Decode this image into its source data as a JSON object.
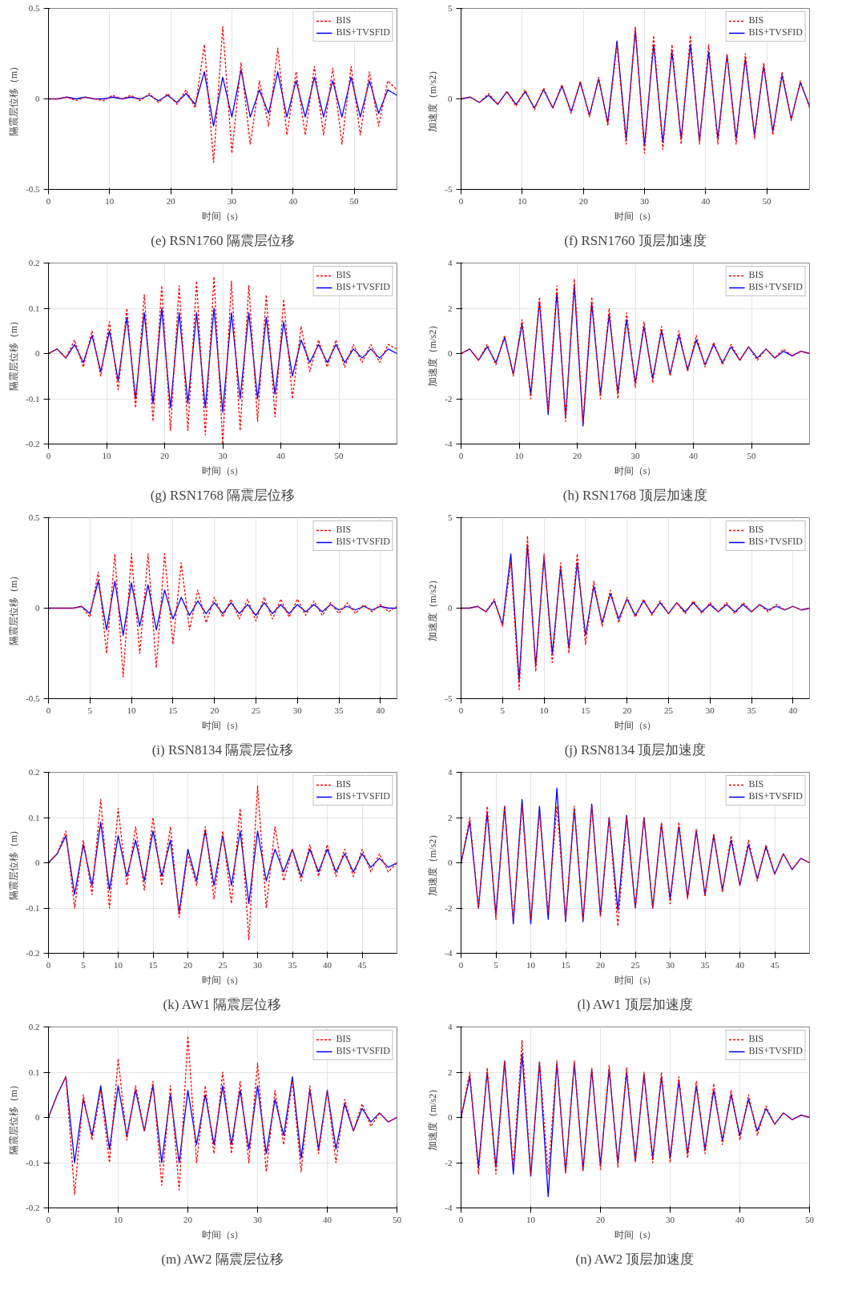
{
  "chart_data": [
    {
      "type": "line",
      "title": "(e) RSN1760 隔震层位移",
      "xlabel": "时间（s）",
      "ylabel": "隔震层位移（m）",
      "xlim": [
        0,
        57
      ],
      "xticks": [
        0,
        10,
        20,
        30,
        40,
        50
      ],
      "ylim": [
        -0.5,
        0.5
      ],
      "yticks": [
        -0.5,
        0,
        0.5
      ],
      "grid": true,
      "legend": "top right",
      "x": [
        0,
        1.5,
        3,
        4.5,
        6,
        7.5,
        9,
        10.5,
        12,
        13.5,
        15,
        16.5,
        18,
        19.5,
        21,
        22.5,
        24,
        25.5,
        27,
        28.5,
        30,
        31.5,
        33,
        34.5,
        36,
        37.5,
        39,
        40.5,
        42,
        43.5,
        45,
        46.5,
        48,
        49.5,
        51,
        52.5,
        54,
        55.5,
        57
      ],
      "series": [
        {
          "name": "BIS",
          "color": "#ff0000",
          "line_style": "dashed",
          "values": [
            0,
            0,
            0.01,
            -0.01,
            0.01,
            0,
            -0.01,
            0.02,
            0,
            0.02,
            -0.01,
            0.03,
            -0.02,
            0.03,
            -0.03,
            0.05,
            -0.05,
            0.3,
            -0.35,
            0.4,
            -0.3,
            0.2,
            -0.25,
            0.1,
            -0.15,
            0.28,
            -0.2,
            0.15,
            -0.2,
            0.18,
            -0.2,
            0.17,
            -0.25,
            0.18,
            -0.2,
            0.15,
            -0.15,
            0.1,
            0.05
          ]
        },
        {
          "name": "BIS+TVSFID",
          "color": "#0000ff",
          "line_style": "solid",
          "values": [
            0,
            0,
            0.01,
            0,
            0.01,
            0,
            0,
            0.01,
            0,
            0.01,
            0,
            0.02,
            -0.01,
            0.02,
            -0.02,
            0.03,
            -0.03,
            0.15,
            -0.15,
            0.12,
            -0.1,
            0.16,
            -0.1,
            0.05,
            -0.08,
            0.15,
            -0.1,
            0.1,
            -0.1,
            0.12,
            -0.1,
            0.1,
            -0.1,
            0.12,
            -0.1,
            0.1,
            -0.08,
            0.05,
            0.02
          ]
        }
      ]
    },
    {
      "type": "line",
      "title": "(f) RSN1760 顶层加速度",
      "xlabel": "时间（s）",
      "ylabel": "加速度（m/s2）",
      "xlim": [
        0,
        57
      ],
      "xticks": [
        0,
        10,
        20,
        30,
        40,
        50
      ],
      "ylim": [
        -5,
        5
      ],
      "yticks": [
        -5,
        0,
        5
      ],
      "grid": true,
      "legend": "top right",
      "x": [
        0,
        1.5,
        3,
        4.5,
        6,
        7.5,
        9,
        10.5,
        12,
        13.5,
        15,
        16.5,
        18,
        19.5,
        21,
        22.5,
        24,
        25.5,
        27,
        28.5,
        30,
        31.5,
        33,
        34.5,
        36,
        37.5,
        39,
        40.5,
        42,
        43.5,
        45,
        46.5,
        48,
        49.5,
        51,
        52.5,
        54,
        55.5,
        57
      ],
      "series": [
        {
          "name": "BIS",
          "color": "#ff0000",
          "line_style": "dashed",
          "values": [
            0,
            0.1,
            -0.2,
            0.3,
            -0.3,
            0.4,
            -0.4,
            0.5,
            -0.6,
            0.6,
            -0.5,
            0.8,
            -0.8,
            1,
            -1,
            1.2,
            -1.5,
            3,
            -2.5,
            4,
            -3,
            3.5,
            -2.8,
            3,
            -2.5,
            3.5,
            -2.5,
            3,
            -2.5,
            2.5,
            -2.5,
            2.5,
            -2.2,
            2,
            -2,
            1.5,
            -1.2,
            1,
            -0.5
          ]
        },
        {
          "name": "BIS+TVSFID",
          "color": "#0000ff",
          "line_style": "solid",
          "values": [
            0,
            0.1,
            -0.2,
            0.2,
            -0.3,
            0.4,
            -0.3,
            0.4,
            -0.5,
            0.5,
            -0.5,
            0.7,
            -0.7,
            0.9,
            -0.9,
            1.1,
            -1.3,
            3.2,
            -2.2,
            3.8,
            -2.6,
            3,
            -2.4,
            2.6,
            -2.2,
            3,
            -2.3,
            2.6,
            -2.2,
            2.4,
            -2.2,
            2.2,
            -2,
            1.8,
            -1.8,
            1.3,
            -1.1,
            0.9,
            -0.4
          ]
        }
      ]
    },
    {
      "type": "line",
      "title": "(g) RSN1768 隔震层位移",
      "xlabel": "时间（s）",
      "ylabel": "隔震层位移（m）",
      "xlim": [
        0,
        60
      ],
      "xticks": [
        0,
        10,
        20,
        30,
        40,
        50
      ],
      "ylim": [
        -0.2,
        0.2
      ],
      "yticks": [
        -0.2,
        -0.1,
        0,
        0.1,
        0.2
      ],
      "grid": true,
      "legend": "top right",
      "x": [
        0,
        1.5,
        3,
        4.5,
        6,
        7.5,
        9,
        10.5,
        12,
        13.5,
        15,
        16.5,
        18,
        19.5,
        21,
        22.5,
        24,
        25.5,
        27,
        28.5,
        30,
        31.5,
        33,
        34.5,
        36,
        37.5,
        39,
        40.5,
        42,
        43.5,
        45,
        46.5,
        48,
        49.5,
        51,
        52.5,
        54,
        55.5,
        57,
        58.5,
        60
      ],
      "series": [
        {
          "name": "BIS",
          "color": "#ff0000",
          "line_style": "dashed",
          "values": [
            0,
            0.01,
            -0.01,
            0.03,
            -0.03,
            0.05,
            -0.05,
            0.07,
            -0.08,
            0.1,
            -0.12,
            0.13,
            -0.15,
            0.15,
            -0.17,
            0.15,
            -0.17,
            0.16,
            -0.18,
            0.17,
            -0.2,
            0.16,
            -0.17,
            0.15,
            -0.15,
            0.13,
            -0.14,
            0.12,
            -0.1,
            0.06,
            -0.04,
            0.03,
            -0.03,
            0.03,
            -0.03,
            0.02,
            -0.02,
            0.02,
            -0.02,
            0.02,
            0.01
          ]
        },
        {
          "name": "BIS+TVSFID",
          "color": "#0000ff",
          "line_style": "solid",
          "values": [
            0,
            0.01,
            -0.01,
            0.02,
            -0.02,
            0.04,
            -0.04,
            0.05,
            -0.06,
            0.08,
            -0.1,
            0.09,
            -0.11,
            0.1,
            -0.12,
            0.09,
            -0.11,
            0.09,
            -0.12,
            0.1,
            -0.13,
            0.09,
            -0.1,
            0.09,
            -0.1,
            0.08,
            -0.09,
            0.07,
            -0.05,
            0.03,
            -0.02,
            0.02,
            -0.02,
            0.02,
            -0.02,
            0.01,
            -0.01,
            0.01,
            -0.01,
            0.01,
            0
          ]
        }
      ]
    },
    {
      "type": "line",
      "title": "(h) RSN1768 顶层加速度",
      "xlabel": "时间（s）",
      "ylabel": "加速度（m/s2）",
      "xlim": [
        0,
        60
      ],
      "xticks": [
        0,
        10,
        20,
        30,
        40,
        50
      ],
      "ylim": [
        -4,
        4
      ],
      "yticks": [
        -4,
        -2,
        0,
        2,
        4
      ],
      "grid": true,
      "legend": "top right",
      "x": [
        0,
        1.5,
        3,
        4.5,
        6,
        7.5,
        9,
        10.5,
        12,
        13.5,
        15,
        16.5,
        18,
        19.5,
        21,
        22.5,
        24,
        25.5,
        27,
        28.5,
        30,
        31.5,
        33,
        34.5,
        36,
        37.5,
        39,
        40.5,
        42,
        43.5,
        45,
        46.5,
        48,
        49.5,
        51,
        52.5,
        54,
        55.5,
        57,
        58.5,
        60
      ],
      "series": [
        {
          "name": "BIS",
          "color": "#ff0000",
          "line_style": "dashed",
          "values": [
            0,
            0.2,
            -0.3,
            0.4,
            -0.5,
            0.8,
            -1,
            1.5,
            -2,
            2.5,
            -2.5,
            3,
            -3,
            3.3,
            -3,
            2.5,
            -2,
            2,
            -2,
            1.8,
            -1.5,
            1.4,
            -1.3,
            1.2,
            -1,
            1,
            -0.8,
            0.8,
            -0.6,
            0.5,
            -0.5,
            0.4,
            -0.3,
            0.3,
            -0.3,
            0.2,
            -0.2,
            0.2,
            -0.1,
            0.1,
            0
          ]
        },
        {
          "name": "BIS+TVSFID",
          "color": "#0000ff",
          "line_style": "solid",
          "values": [
            0,
            0.2,
            -0.3,
            0.3,
            -0.4,
            0.7,
            -0.9,
            1.3,
            -1.8,
            2.3,
            -2.7,
            2.7,
            -2.8,
            3,
            -3.2,
            2.2,
            -1.8,
            1.7,
            -1.7,
            1.5,
            -1.3,
            1.2,
            -1.1,
            1,
            -0.9,
            0.8,
            -0.7,
            0.6,
            -0.5,
            0.4,
            -0.4,
            0.3,
            -0.3,
            0.3,
            -0.2,
            0.2,
            -0.2,
            0.1,
            -0.1,
            0.1,
            0
          ]
        }
      ]
    },
    {
      "type": "line",
      "title": "(i) RSN8134 隔震层位移",
      "xlabel": "时间（s）",
      "ylabel": "隔震层位移（m）",
      "xlim": [
        0,
        42
      ],
      "xticks": [
        0,
        5,
        10,
        15,
        20,
        25,
        30,
        35,
        40
      ],
      "ylim": [
        -0.5,
        0.5
      ],
      "yticks": [
        -0.5,
        0,
        0.5
      ],
      "grid": true,
      "legend": "top right",
      "x": [
        0,
        1,
        2,
        3,
        4,
        5,
        6,
        7,
        8,
        9,
        10,
        11,
        12,
        13,
        14,
        15,
        16,
        17,
        18,
        19,
        20,
        21,
        22,
        23,
        24,
        25,
        26,
        27,
        28,
        29,
        30,
        31,
        32,
        33,
        34,
        35,
        36,
        37,
        38,
        39,
        40,
        41,
        42
      ],
      "series": [
        {
          "name": "BIS",
          "color": "#ff0000",
          "line_style": "dashed",
          "values": [
            0,
            0,
            0,
            0,
            0.01,
            -0.05,
            0.2,
            -0.25,
            0.3,
            -0.38,
            0.3,
            -0.25,
            0.3,
            -0.33,
            0.3,
            -0.2,
            0.25,
            -0.12,
            0.1,
            -0.08,
            0.06,
            -0.05,
            0.05,
            -0.06,
            0.05,
            -0.07,
            0.06,
            -0.06,
            0.05,
            -0.05,
            0.05,
            -0.04,
            0.04,
            -0.04,
            0.03,
            -0.03,
            0.03,
            -0.03,
            0.02,
            -0.02,
            0.02,
            -0.02,
            0.01
          ]
        },
        {
          "name": "BIS+TVSFID",
          "color": "#0000ff",
          "line_style": "solid",
          "values": [
            0,
            0,
            0,
            0,
            0.01,
            -0.03,
            0.15,
            -0.12,
            0.15,
            -0.15,
            0.14,
            -0.1,
            0.13,
            -0.12,
            0.1,
            -0.06,
            0.06,
            -0.04,
            0.04,
            -0.03,
            0.03,
            -0.03,
            0.03,
            -0.03,
            0.02,
            -0.04,
            0.03,
            -0.03,
            0.02,
            -0.03,
            0.02,
            -0.02,
            0.02,
            -0.02,
            0.02,
            -0.01,
            0.01,
            -0.01,
            0.01,
            -0.01,
            0.01,
            0,
            0
          ]
        }
      ]
    },
    {
      "type": "line",
      "title": "(j) RSN8134 顶层加速度",
      "xlabel": "时间（s）",
      "ylabel": "加速度（m/s2）",
      "xlim": [
        0,
        42
      ],
      "xticks": [
        0,
        5,
        10,
        15,
        20,
        25,
        30,
        35,
        40
      ],
      "ylim": [
        -5,
        5
      ],
      "yticks": [
        -5,
        0,
        5
      ],
      "grid": true,
      "legend": "top right",
      "x": [
        0,
        1,
        2,
        3,
        4,
        5,
        6,
        7,
        8,
        9,
        10,
        11,
        12,
        13,
        14,
        15,
        16,
        17,
        18,
        19,
        20,
        21,
        22,
        23,
        24,
        25,
        26,
        27,
        28,
        29,
        30,
        31,
        32,
        33,
        34,
        35,
        36,
        37,
        38,
        39,
        40,
        41,
        42
      ],
      "series": [
        {
          "name": "BIS",
          "color": "#ff0000",
          "line_style": "dashed",
          "values": [
            0,
            0,
            0.1,
            -0.2,
            0.5,
            -1,
            2.5,
            -4.5,
            4,
            -3.5,
            3,
            -3,
            2.5,
            -2.5,
            3,
            -2,
            1.5,
            -1,
            1,
            -0.8,
            0.6,
            -0.5,
            0.5,
            -0.4,
            0.4,
            -0.3,
            0.3,
            -0.3,
            0.4,
            -0.3,
            0.3,
            -0.2,
            0.3,
            -0.3,
            0.3,
            -0.2,
            0.2,
            -0.2,
            0.2,
            -0.1,
            0.1,
            -0.1,
            0
          ]
        },
        {
          "name": "BIS+TVSFID",
          "color": "#0000ff",
          "line_style": "solid",
          "values": [
            0,
            0,
            0.1,
            -0.2,
            0.4,
            -0.9,
            3,
            -4,
            3.5,
            -3.2,
            2.8,
            -2.5,
            2.2,
            -2.2,
            2.5,
            -1.5,
            1.2,
            -0.8,
            0.8,
            -0.6,
            0.5,
            -0.4,
            0.4,
            -0.3,
            0.3,
            -0.3,
            0.3,
            -0.2,
            0.3,
            -0.2,
            0.2,
            -0.2,
            0.2,
            -0.2,
            0.2,
            -0.2,
            0.2,
            -0.1,
            0.1,
            -0.1,
            0.1,
            -0.1,
            0
          ]
        }
      ]
    },
    {
      "type": "line",
      "title": "(k) AW1 隔震层位移",
      "xlabel": "时间（s）",
      "ylabel": "隔震层位移（m）",
      "xlim": [
        0,
        50
      ],
      "xticks": [
        0,
        5,
        10,
        15,
        20,
        25,
        30,
        35,
        40,
        45
      ],
      "ylim": [
        -0.2,
        0.2
      ],
      "yticks": [
        -0.2,
        -0.1,
        0,
        0.1,
        0.2
      ],
      "grid": true,
      "legend": "top right",
      "x": [
        0,
        1.25,
        2.5,
        3.75,
        5,
        6.25,
        7.5,
        8.75,
        10,
        11.25,
        12.5,
        13.75,
        15,
        16.25,
        17.5,
        18.75,
        20,
        21.25,
        22.5,
        23.75,
        25,
        26.25,
        27.5,
        28.75,
        30,
        31.25,
        32.5,
        33.75,
        35,
        36.25,
        37.5,
        38.75,
        40,
        41.25,
        42.5,
        43.75,
        45,
        46.25,
        47.5,
        48.75,
        50
      ],
      "series": [
        {
          "name": "BIS",
          "color": "#ff0000",
          "line_style": "dashed",
          "values": [
            0,
            0.02,
            0.07,
            -0.1,
            0.05,
            -0.07,
            0.14,
            -0.1,
            0.12,
            -0.05,
            0.08,
            -0.06,
            0.1,
            -0.05,
            0.08,
            -0.12,
            0.02,
            -0.05,
            0.08,
            -0.08,
            0.07,
            -0.09,
            0.12,
            -0.17,
            0.17,
            -0.1,
            0.08,
            -0.04,
            0.03,
            -0.04,
            0.04,
            -0.03,
            0.04,
            -0.03,
            0.03,
            -0.03,
            0.03,
            -0.02,
            0.02,
            -0.02,
            0
          ]
        },
        {
          "name": "BIS+TVSFID",
          "color": "#0000ff",
          "line_style": "solid",
          "values": [
            0,
            0.02,
            0.06,
            -0.07,
            0.04,
            -0.05,
            0.09,
            -0.06,
            0.06,
            -0.03,
            0.05,
            -0.04,
            0.07,
            -0.03,
            0.05,
            -0.11,
            0.03,
            -0.04,
            0.07,
            -0.05,
            0.06,
            -0.05,
            0.07,
            -0.09,
            0.07,
            -0.04,
            0.03,
            -0.02,
            0.03,
            -0.03,
            0.03,
            -0.02,
            0.03,
            -0.02,
            0.02,
            -0.02,
            0.02,
            -0.01,
            0.01,
            -0.01,
            0
          ]
        }
      ]
    },
    {
      "type": "line",
      "title": "(l) AW1 顶层加速度",
      "xlabel": "时间（s）",
      "ylabel": "加速度（m/s2）",
      "xlim": [
        0,
        50
      ],
      "xticks": [
        0,
        5,
        10,
        15,
        20,
        25,
        30,
        35,
        40,
        45
      ],
      "ylim": [
        -4,
        4
      ],
      "yticks": [
        -4,
        -2,
        0,
        2,
        4
      ],
      "grid": true,
      "legend": "top right",
      "x": [
        0,
        1.25,
        2.5,
        3.75,
        5,
        6.25,
        7.5,
        8.75,
        10,
        11.25,
        12.5,
        13.75,
        15,
        16.25,
        17.5,
        18.75,
        20,
        21.25,
        22.5,
        23.75,
        25,
        26.25,
        27.5,
        28.75,
        30,
        31.25,
        32.5,
        33.75,
        35,
        36.25,
        37.5,
        38.75,
        40,
        41.25,
        42.5,
        43.75,
        45,
        46.25,
        47.5,
        48.75,
        50
      ],
      "series": [
        {
          "name": "BIS",
          "color": "#ff0000",
          "line_style": "dashed",
          "values": [
            0,
            2,
            -2,
            2.5,
            -2.5,
            2.5,
            -2.5,
            2.5,
            -2.5,
            2.2,
            -2.2,
            2.5,
            -2.5,
            2.5,
            -2.5,
            2.5,
            -2.4,
            2,
            -2.8,
            2,
            -2,
            2,
            -2,
            1.8,
            -1.8,
            1.8,
            -1.6,
            1.5,
            -1.5,
            1.3,
            -1.3,
            1.2,
            -1,
            1,
            -0.8,
            0.8,
            -0.5,
            0.4,
            -0.3,
            0.2,
            0
          ]
        },
        {
          "name": "BIS+TVSFID",
          "color": "#0000ff",
          "line_style": "solid",
          "values": [
            0,
            1.8,
            -2,
            2.2,
            -2.3,
            2.5,
            -2.7,
            2.8,
            -2.7,
            2.5,
            -2.5,
            3.3,
            -2.6,
            2.4,
            -2.6,
            2.6,
            -2.3,
            2,
            -2.1,
            2.1,
            -2,
            2,
            -2,
            1.7,
            -1.6,
            1.6,
            -1.5,
            1.4,
            -1.4,
            1.2,
            -1.2,
            1,
            -1,
            0.8,
            -0.7,
            0.7,
            -0.5,
            0.4,
            -0.3,
            0.2,
            0
          ]
        }
      ]
    },
    {
      "type": "line",
      "title": "(m) AW2 隔震层位移",
      "xlabel": "时间（s）",
      "ylabel": "隔震层位移（m）",
      "xlim": [
        0,
        50
      ],
      "xticks": [
        0,
        10,
        20,
        30,
        40,
        50
      ],
      "ylim": [
        -0.2,
        0.2
      ],
      "yticks": [
        -0.2,
        -0.1,
        0,
        0.1,
        0.2
      ],
      "grid": true,
      "legend": "top right",
      "x": [
        0,
        1.25,
        2.5,
        3.75,
        5,
        6.25,
        7.5,
        8.75,
        10,
        11.25,
        12.5,
        13.75,
        15,
        16.25,
        17.5,
        18.75,
        20,
        21.25,
        22.5,
        23.75,
        25,
        26.25,
        27.5,
        28.75,
        30,
        31.25,
        32.5,
        33.75,
        35,
        36.25,
        37.5,
        38.75,
        40,
        41.25,
        42.5,
        43.75,
        45,
        46.25,
        47.5,
        48.75,
        50
      ],
      "series": [
        {
          "name": "BIS",
          "color": "#ff0000",
          "line_style": "dashed",
          "values": [
            0,
            0.05,
            0.09,
            -0.17,
            0.05,
            -0.05,
            0.06,
            -0.1,
            0.13,
            -0.05,
            0.07,
            -0.03,
            0.08,
            -0.15,
            0.07,
            -0.16,
            0.18,
            -0.1,
            0.07,
            -0.08,
            0.1,
            -0.08,
            0.08,
            -0.1,
            0.12,
            -0.12,
            0.06,
            -0.06,
            0.08,
            -0.12,
            0.07,
            -0.08,
            0.06,
            -0.1,
            0.04,
            -0.03,
            0.03,
            -0.02,
            0.01,
            -0.01,
            0
          ]
        },
        {
          "name": "BIS+TVSFID",
          "color": "#0000ff",
          "line_style": "solid",
          "values": [
            0,
            0.05,
            0.09,
            -0.1,
            0.04,
            -0.04,
            0.07,
            -0.07,
            0.07,
            -0.04,
            0.06,
            -0.03,
            0.07,
            -0.1,
            0.05,
            -0.1,
            0.06,
            -0.06,
            0.05,
            -0.06,
            0.07,
            -0.06,
            0.06,
            -0.07,
            0.07,
            -0.08,
            0.04,
            -0.04,
            0.09,
            -0.09,
            0.06,
            -0.07,
            0.06,
            -0.07,
            0.03,
            -0.03,
            0.02,
            -0.01,
            0.01,
            -0.01,
            0
          ]
        }
      ]
    },
    {
      "type": "line",
      "title": "(n) AW2 顶层加速度",
      "xlabel": "时间（s）",
      "ylabel": "加速度（m/s2）",
      "xlim": [
        0,
        50
      ],
      "xticks": [
        0,
        10,
        20,
        30,
        40,
        50
      ],
      "ylim": [
        -4,
        4
      ],
      "yticks": [
        -4,
        -2,
        0,
        2,
        4
      ],
      "grid": true,
      "legend": "top right",
      "x": [
        0,
        1.25,
        2.5,
        3.75,
        5,
        6.25,
        7.5,
        8.75,
        10,
        11.25,
        12.5,
        13.75,
        15,
        16.25,
        17.5,
        18.75,
        20,
        21.25,
        22.5,
        23.75,
        25,
        26.25,
        27.5,
        28.75,
        30,
        31.25,
        32.5,
        33.75,
        35,
        36.25,
        37.5,
        38.75,
        40,
        41.25,
        42.5,
        43.75,
        45,
        46.25,
        47.5,
        48.75,
        50
      ],
      "series": [
        {
          "name": "BIS",
          "color": "#ff0000",
          "line_style": "dashed",
          "values": [
            0,
            2,
            -2.5,
            2.2,
            -2.5,
            2.5,
            -2.2,
            3.4,
            -2.5,
            2.5,
            -2.5,
            2.5,
            -2.5,
            2.5,
            -2.4,
            2.2,
            -2.3,
            2.3,
            -2.2,
            2.2,
            -2,
            2,
            -2,
            2,
            -2,
            1.8,
            -1.8,
            1.6,
            -1.6,
            1.5,
            -1.2,
            1.2,
            -1,
            1,
            -0.8,
            0.5,
            -0.3,
            0.2,
            -0.1,
            0.1,
            0
          ]
        },
        {
          "name": "BIS+TVSFID",
          "color": "#0000ff",
          "line_style": "solid",
          "values": [
            0,
            1.8,
            -2.2,
            2,
            -2.2,
            2.5,
            -2.5,
            2.8,
            -2.6,
            2.4,
            -3.5,
            2.4,
            -2.4,
            2.4,
            -2.3,
            2.1,
            -2.1,
            2.1,
            -2,
            2,
            -1.9,
            1.9,
            -1.8,
            1.8,
            -1.8,
            1.6,
            -1.6,
            1.4,
            -1.4,
            1.2,
            -1,
            1,
            -0.8,
            0.8,
            -0.6,
            0.4,
            -0.3,
            0.2,
            -0.1,
            0.1,
            0
          ]
        }
      ]
    }
  ]
}
